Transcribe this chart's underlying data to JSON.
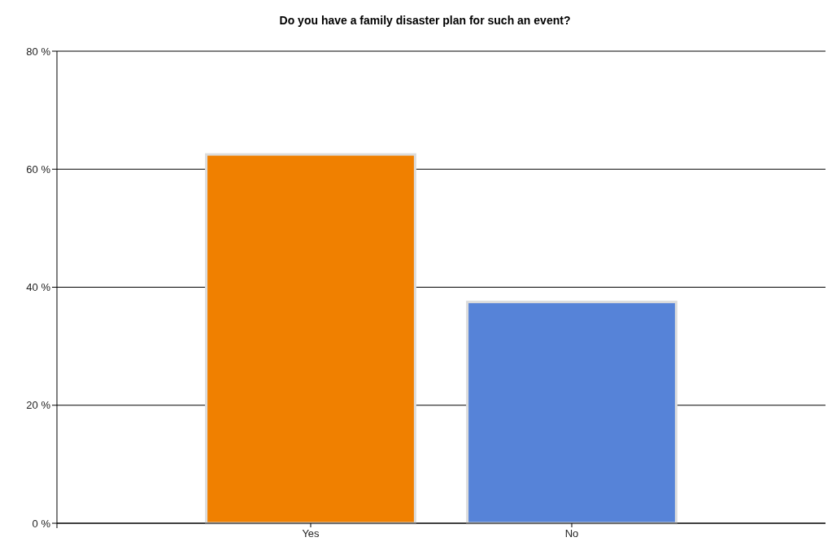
{
  "chart_data": {
    "type": "bar",
    "title": "Do you have a family disaster plan for such an event?",
    "categories": [
      "Yes",
      "No"
    ],
    "values": [
      62.5,
      37.5
    ],
    "colors": [
      "#f08000",
      "#5683d8"
    ],
    "ylim": [
      0,
      80
    ],
    "yticks": [
      {
        "value": 0,
        "label": "0 %"
      },
      {
        "value": 20,
        "label": "20 %"
      },
      {
        "value": 40,
        "label": "40 %"
      },
      {
        "value": 60,
        "label": "60 %"
      },
      {
        "value": 80,
        "label": "80 %"
      }
    ],
    "grid": "y"
  }
}
